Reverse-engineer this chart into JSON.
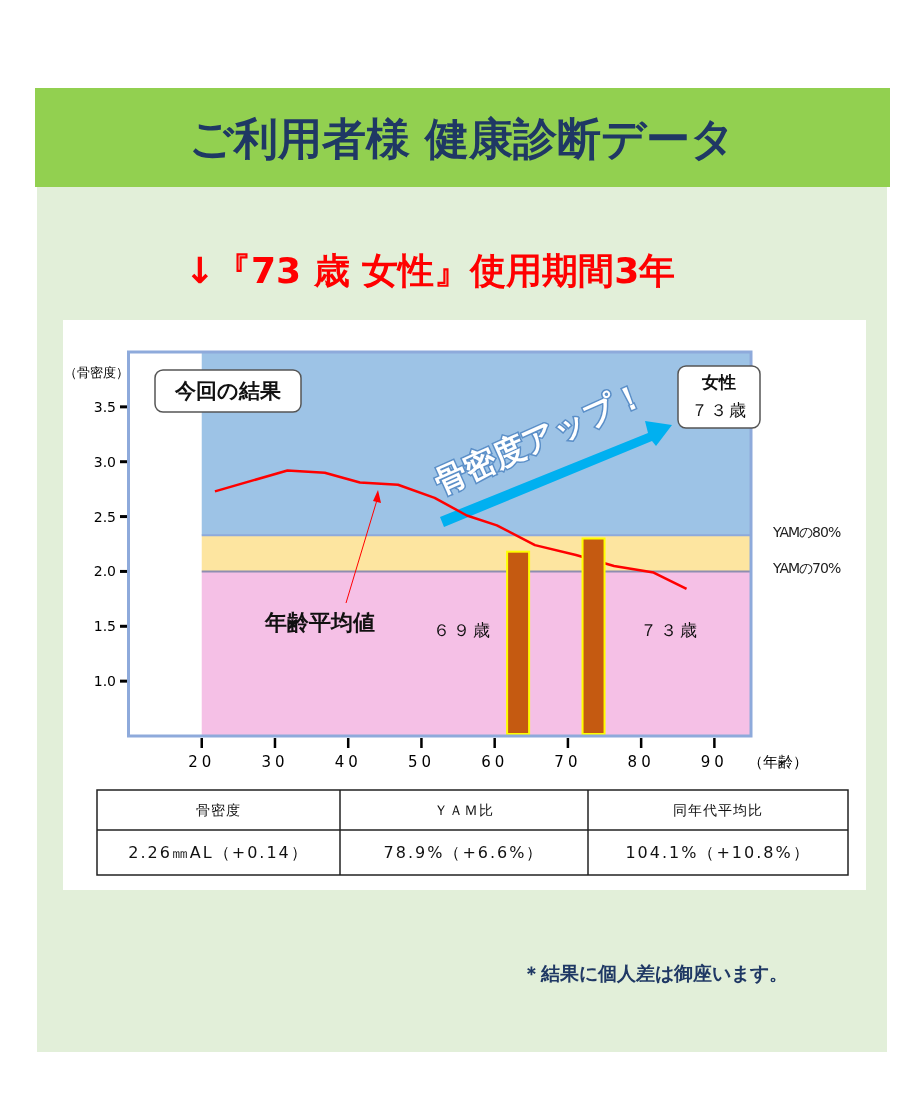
{
  "chart_data": {
    "type": "bar",
    "title": "ご利用者様  健康診断データ",
    "subtitle": "↓『73 歳 女性』使用期間3年",
    "ylabel": "（骨密度）",
    "xlabel": "（年齢）",
    "xlim": [
      10,
      95
    ],
    "xticks": [
      20,
      30,
      40,
      50,
      60,
      70,
      80,
      90
    ],
    "ylim": [
      0.5,
      4.0
    ],
    "yticks": [
      {
        "value": 1,
        "label": "1.0"
      },
      {
        "value": 1.5,
        "label": "1.5"
      },
      {
        "value": 2,
        "label": "2.0"
      },
      {
        "value": 2.5,
        "label": "2.5"
      },
      {
        "value": 3,
        "label": "3.0"
      },
      {
        "value": 3.5,
        "label": "3.5"
      }
    ],
    "series": [
      {
        "type": "line",
        "name": "年齢平均値",
        "color": "#ff0000",
        "x": [
          21.8,
          31.7,
          36.8,
          41.6,
          46.8,
          51.8,
          56.2,
          60.3,
          65.5,
          71.1,
          76.3,
          81.7,
          86.2
        ],
        "values": [
          2.73,
          2.92,
          2.9,
          2.81,
          2.79,
          2.67,
          2.51,
          2.42,
          2.24,
          2.15,
          2.05,
          1.99,
          1.84
        ]
      },
      {
        "color": "#c55a11",
        "x": [
          63.2,
          73.5
        ],
        "values": [
          2.18,
          2.3
        ]
      }
    ],
    "bands": [
      {
        "axis": "y",
        "from": 0.5,
        "to": 2.0,
        "color": "#f5c0e6"
      },
      {
        "axis": "y",
        "from": 2.0,
        "to": 2.33,
        "color": "#fde5a0"
      },
      {
        "axis": "y",
        "from": 2.33,
        "to": 4.0,
        "color": "#9dc3e6"
      }
    ],
    "ref_lines": [
      {
        "axis": "y",
        "value": 2.33,
        "label": "YAMの80%",
        "color": "#8eaadb"
      },
      {
        "axis": "y",
        "value": 2.0,
        "label": "YAMの70%",
        "color": "#8e8eb0"
      }
    ],
    "legend": false,
    "annotations": [
      "６９歳",
      "７３歳",
      "今回の結果",
      "女性",
      "７３歳",
      "骨密度アップ！",
      "骨密度",
      "ＹＡＭ比",
      "同年代平均比",
      "2.26㎜AL（+0.14）",
      "78.9%（+6.6%）",
      "104.1%（+10.8%）",
      "＊結果に個人差は御座います。"
    ]
  }
}
